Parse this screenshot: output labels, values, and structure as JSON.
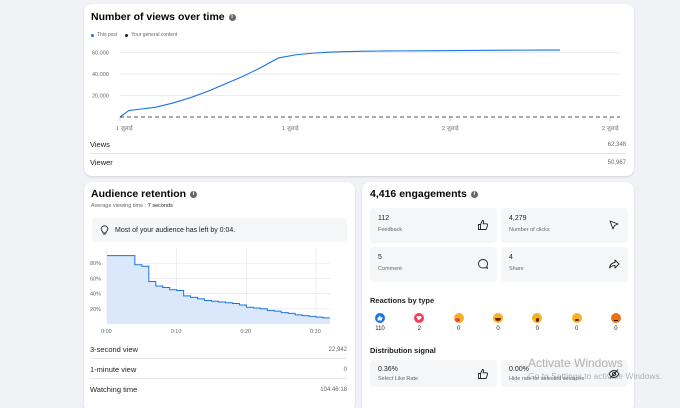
{
  "views_card": {
    "title": "Number of views over time",
    "legend": [
      {
        "label": "This post",
        "color": "#1b74e4"
      },
      {
        "label": "Your general content",
        "color": "#1c1e21"
      }
    ],
    "stats": [
      {
        "label": "Views",
        "value": "62,348"
      },
      {
        "label": "Viewer",
        "value": "50,967"
      }
    ]
  },
  "retention_card": {
    "title": "Audience retention",
    "subtitle_label": "Average viewing time :",
    "subtitle_value": "7 seconds",
    "notice": "Most of your audience has left by 0:04.",
    "stats": [
      {
        "label": "3-second view",
        "value": "22,942"
      },
      {
        "label": "1-minute view",
        "value": "0"
      },
      {
        "label": "Watching time",
        "value": "104:46:18"
      }
    ]
  },
  "engagements_card": {
    "title": "4,416 engagements",
    "metrics": [
      {
        "value": "112",
        "label": "Feedback",
        "icon": "thumbs-up-icon"
      },
      {
        "value": "4,279",
        "label": "Number of clicks",
        "icon": "cursor-icon"
      },
      {
        "value": "5",
        "label": "Comment",
        "icon": "comment-icon"
      },
      {
        "value": "4",
        "label": "Share",
        "icon": "share-icon"
      }
    ],
    "reactions_title": "Reactions by type",
    "reactions": [
      {
        "name": "like",
        "count": "110",
        "color": "#1b74e4"
      },
      {
        "name": "love",
        "count": "2",
        "color": "#f33e58"
      },
      {
        "name": "care",
        "count": "0",
        "color": "#f7b125"
      },
      {
        "name": "haha",
        "count": "0",
        "color": "#f7b125"
      },
      {
        "name": "wow",
        "count": "0",
        "color": "#f7b125"
      },
      {
        "name": "sad",
        "count": "0",
        "color": "#f7b125"
      },
      {
        "name": "angry",
        "count": "0",
        "color": "#e9710f"
      }
    ],
    "distribution_title": "Distribution signal",
    "distribution": [
      {
        "value": "0.36%",
        "label": "Select Like Rate",
        "icon": "thumbs-up-icon"
      },
      {
        "value": "0.00%",
        "label": "Hide rate for selected sessions",
        "icon": "eye-off-icon"
      }
    ]
  },
  "watermark": {
    "title": "Activate Windows",
    "subtitle": "Go to Settings to activate Windows."
  },
  "chart_data": [
    {
      "type": "line",
      "title": "Number of views over time",
      "x_ticks": [
        "1 ज़ुलाई",
        "1 ज़ुलाई",
        "2 ज़ुलाई",
        "2 ज़ुलाई"
      ],
      "y_ticks": [
        "20,000",
        "40,000",
        "60,000"
      ],
      "ylim": [
        0,
        68000
      ],
      "grid": true,
      "legend_position": "top-left",
      "series": [
        {
          "name": "This post",
          "color": "#1b74e4",
          "x": [
            0,
            0.02,
            0.04,
            0.08,
            0.12,
            0.16,
            0.2,
            0.24,
            0.28,
            0.32,
            0.36,
            0.4,
            0.44,
            0.48,
            0.52,
            0.56,
            0.6,
            0.64,
            0.68,
            0.72,
            0.76,
            0.8,
            0.84,
            0.88,
            0.92,
            0.96,
            1.0
          ],
          "y": [
            0,
            6000,
            7000,
            9000,
            13000,
            18000,
            24000,
            31000,
            38000,
            46000,
            55000,
            58000,
            59500,
            60500,
            61000,
            61300,
            61500,
            61600,
            61700,
            61800,
            61900,
            62000,
            62100,
            62200,
            62300,
            62348,
            62348
          ]
        },
        {
          "name": "Your general content",
          "color": "#1c1e21",
          "dashed": true,
          "x": [
            0,
            1.0
          ],
          "y": [
            0,
            0
          ]
        }
      ]
    },
    {
      "type": "area",
      "title": "Audience retention",
      "x_ticks": [
        "0:00",
        "0:10",
        "0:20",
        "0:30"
      ],
      "y_ticks": [
        "20%",
        "40%",
        "60%",
        "80%"
      ],
      "xlim": [
        0,
        32
      ],
      "ylim": [
        0,
        100
      ],
      "grid": true,
      "series": [
        {
          "color": "#1b74e4",
          "x": [
            0,
            1,
            2,
            3,
            4,
            5,
            6,
            7,
            8,
            9,
            10,
            11,
            12,
            13,
            14,
            15,
            16,
            17,
            18,
            19,
            20,
            21,
            22,
            23,
            24,
            25,
            26,
            27,
            28,
            29,
            30,
            31,
            32
          ],
          "y": [
            90,
            90,
            90,
            90,
            78,
            76,
            56,
            50,
            48,
            45,
            44,
            37,
            35,
            33,
            31,
            30,
            29,
            28,
            27,
            25,
            22,
            21,
            20,
            18,
            17,
            15,
            14,
            12,
            11,
            10,
            9,
            8,
            8
          ]
        }
      ]
    }
  ]
}
